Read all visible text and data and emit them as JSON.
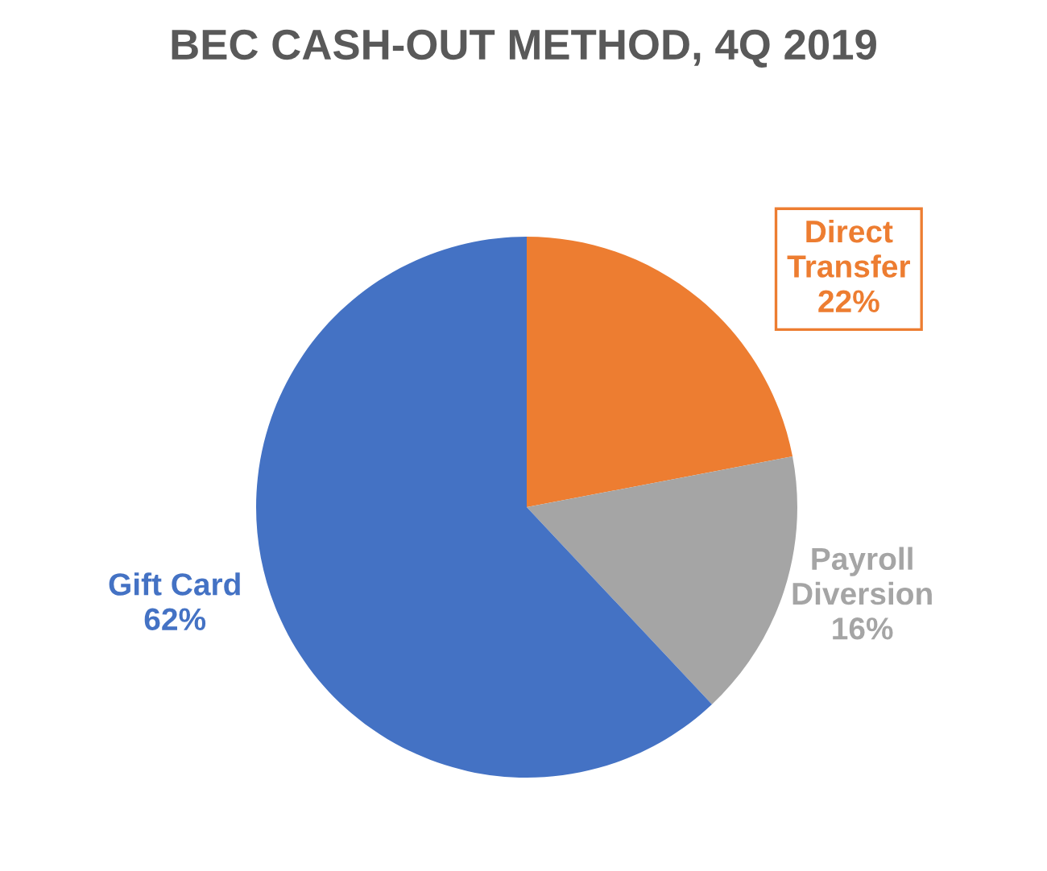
{
  "chart_data": {
    "type": "pie",
    "title": "BEC CASH-OUT METHOD, 4Q 2019",
    "categories": [
      "Direct Transfer",
      "Payroll Diversion",
      "Gift Card"
    ],
    "values": [
      22,
      16,
      62
    ],
    "colors": [
      "#ed7d31",
      "#a5a5a5",
      "#4472c4"
    ],
    "value_labels": [
      "22%",
      "16%",
      "62%"
    ]
  }
}
